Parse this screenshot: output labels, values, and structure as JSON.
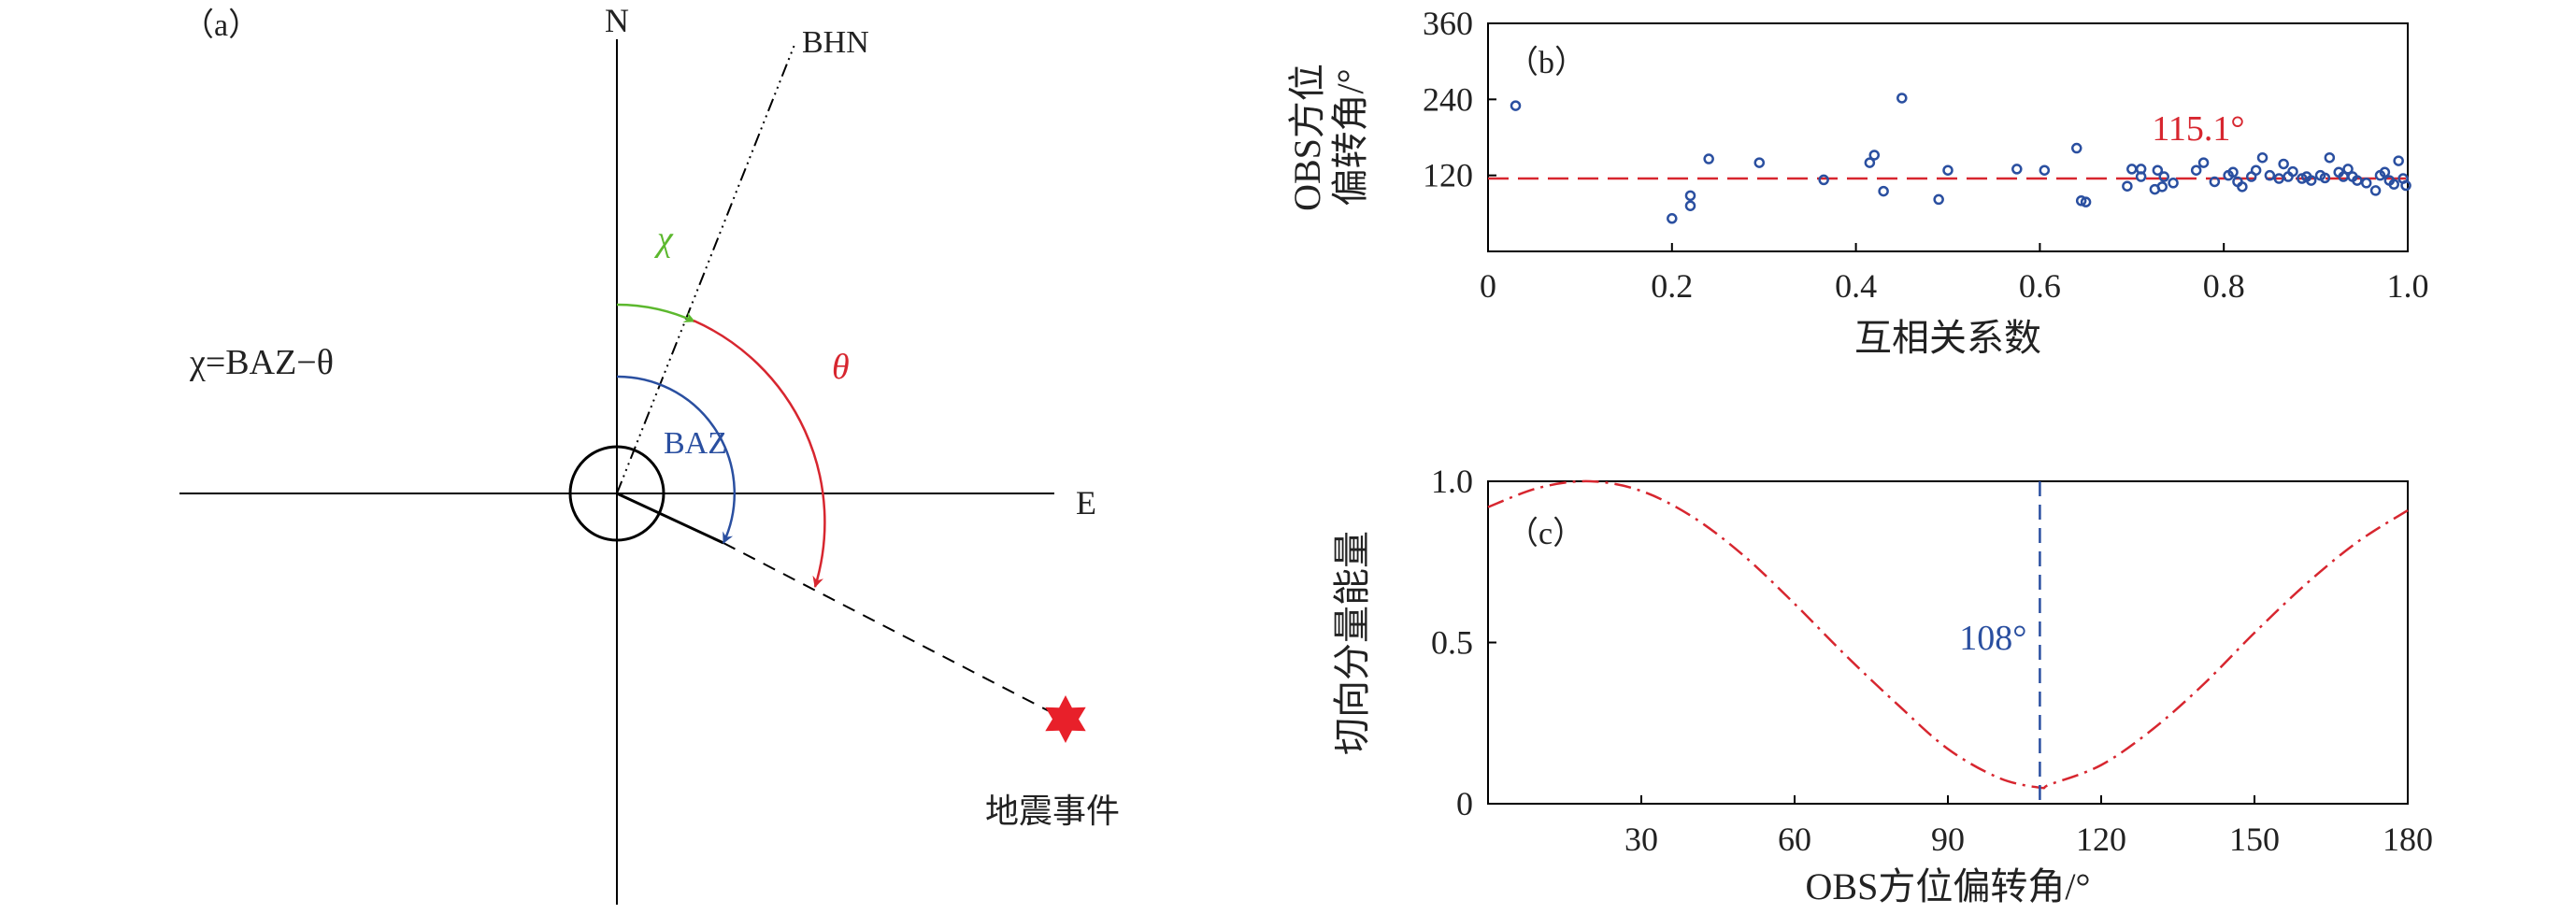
{
  "panel_a": {
    "label": "（a）",
    "north_label": "N",
    "east_label": "E",
    "bhn_label": "BHN",
    "chi_label": "χ",
    "theta_label": "θ",
    "baz_label": "BAZ",
    "formula": "χ=BAZ−θ",
    "event_label": "地震事件",
    "colors": {
      "chi": "#5cb82e",
      "theta": "#d7262f",
      "baz": "#2a4fa0",
      "event": "#e8202a"
    }
  },
  "chart_data": [
    {
      "panel": "b",
      "type": "scatter",
      "label": "（b）",
      "xlabel": "互相关系数",
      "ylabel": [
        "OBS方位",
        "偏转角/°"
      ],
      "xlim": [
        0,
        1.0
      ],
      "ylim": [
        0,
        360
      ],
      "xticks": [
        "0",
        "0.2",
        "0.4",
        "0.6",
        "0.8",
        "1.0"
      ],
      "yticks": [
        "120",
        "240",
        "360"
      ],
      "reference_line": {
        "y": 115.1,
        "label": "115.1°",
        "style": "dashed",
        "color": "#d7262f"
      },
      "marker_color": "#2a4fa0",
      "points": [
        [
          0.03,
          230
        ],
        [
          0.2,
          52
        ],
        [
          0.22,
          72
        ],
        [
          0.22,
          88
        ],
        [
          0.24,
          146
        ],
        [
          0.295,
          140
        ],
        [
          0.365,
          113
        ],
        [
          0.415,
          140
        ],
        [
          0.42,
          152
        ],
        [
          0.43,
          95
        ],
        [
          0.45,
          242
        ],
        [
          0.49,
          82
        ],
        [
          0.5,
          128
        ],
        [
          0.575,
          130
        ],
        [
          0.605,
          128
        ],
        [
          0.64,
          163
        ],
        [
          0.645,
          80
        ],
        [
          0.65,
          78
        ],
        [
          0.695,
          103
        ],
        [
          0.7,
          130
        ],
        [
          0.71,
          118
        ],
        [
          0.71,
          130
        ],
        [
          0.725,
          98
        ],
        [
          0.728,
          128
        ],
        [
          0.733,
          102
        ],
        [
          0.735,
          118
        ],
        [
          0.745,
          108
        ],
        [
          0.77,
          128
        ],
        [
          0.778,
          140
        ],
        [
          0.79,
          110
        ],
        [
          0.805,
          120
        ],
        [
          0.81,
          125
        ],
        [
          0.815,
          110
        ],
        [
          0.82,
          102
        ],
        [
          0.83,
          118
        ],
        [
          0.835,
          128
        ],
        [
          0.842,
          148
        ],
        [
          0.85,
          120
        ],
        [
          0.86,
          115
        ],
        [
          0.865,
          138
        ],
        [
          0.87,
          118
        ],
        [
          0.875,
          126
        ],
        [
          0.885,
          115
        ],
        [
          0.89,
          118
        ],
        [
          0.895,
          112
        ],
        [
          0.905,
          120
        ],
        [
          0.91,
          116
        ],
        [
          0.915,
          148
        ],
        [
          0.925,
          125
        ],
        [
          0.93,
          118
        ],
        [
          0.935,
          130
        ],
        [
          0.94,
          118
        ],
        [
          0.945,
          112
        ],
        [
          0.955,
          108
        ],
        [
          0.965,
          96
        ],
        [
          0.97,
          120
        ],
        [
          0.975,
          125
        ],
        [
          0.98,
          112
        ],
        [
          0.985,
          106
        ],
        [
          0.99,
          143
        ],
        [
          0.995,
          115
        ],
        [
          0.998,
          104
        ]
      ]
    },
    {
      "panel": "c",
      "type": "line",
      "label": "（c）",
      "xlabel": "OBS方位偏转角/°",
      "ylabel": "切向分量能量",
      "xlim": [
        0,
        180
      ],
      "ylim": [
        0,
        1.0
      ],
      "xticks": [
        "30",
        "60",
        "90",
        "120",
        "150",
        "180"
      ],
      "yticks": [
        "0",
        "0.5",
        "1.0"
      ],
      "series": [
        {
          "style": "dash-dot",
          "color": "#d7262f",
          "x": [
            0,
            10,
            20,
            30,
            40,
            50,
            60,
            70,
            80,
            90,
            100,
            108,
            110,
            120,
            130,
            140,
            150,
            160,
            170,
            180
          ],
          "y": [
            0.92,
            0.98,
            1.0,
            0.97,
            0.89,
            0.77,
            0.62,
            0.46,
            0.31,
            0.17,
            0.08,
            0.05,
            0.06,
            0.12,
            0.23,
            0.37,
            0.53,
            0.68,
            0.81,
            0.91
          ]
        }
      ],
      "reference_line": {
        "x": 108,
        "label": "108°",
        "style": "dashed",
        "color": "#2a4fa0"
      }
    }
  ]
}
